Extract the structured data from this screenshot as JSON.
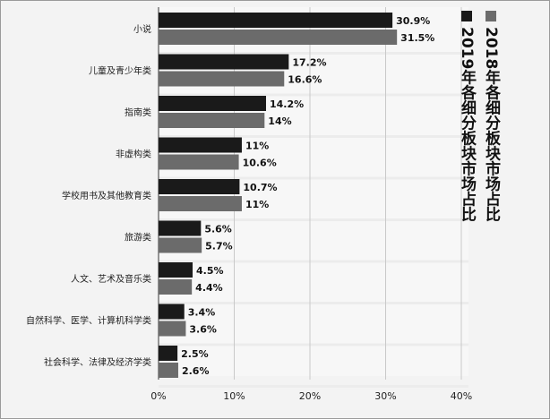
{
  "chart_data": {
    "type": "bar",
    "orientation": "horizontal",
    "categories": [
      "小说",
      "儿童及青少年类",
      "指南类",
      "非虚构类",
      "学校用书及其他教育类",
      "旅游类",
      "人文、艺术及音乐类",
      "自然科学、医学、计算机科学类",
      "社会科学、法律及经济学类"
    ],
    "series": [
      {
        "name": "2019年各细分板块市场占比",
        "color": "#1a1a1a",
        "values": [
          30.9,
          17.2,
          14.2,
          11,
          10.7,
          5.6,
          4.5,
          3.4,
          2.5
        ],
        "labels": [
          "30.9%",
          "17.2%",
          "14.2%",
          "11%",
          "10.7%",
          "5.6%",
          "4.5%",
          "3.4%",
          "2.5%"
        ]
      },
      {
        "name": "2018年各细分板块市场占比",
        "color": "#6b6b6b",
        "values": [
          31.5,
          16.6,
          14,
          10.6,
          11,
          5.7,
          4.4,
          3.6,
          2.6
        ],
        "labels": [
          "31.5%",
          "16.6%",
          "14%",
          "10.6%",
          "11%",
          "5.7%",
          "4.4%",
          "3.6%",
          "2.6%"
        ]
      }
    ],
    "xticks": [
      "0%",
      "10%",
      "20%",
      "30%",
      "40%"
    ],
    "xlim": [
      0,
      40
    ],
    "grid": true,
    "legend_position": "right, vertical"
  }
}
